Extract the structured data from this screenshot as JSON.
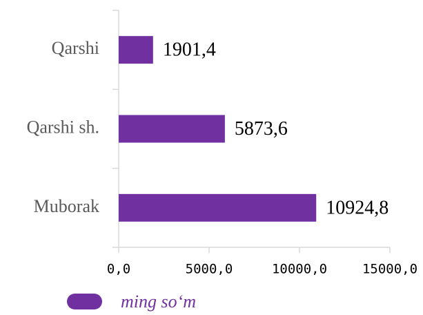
{
  "chart_data": {
    "type": "bar",
    "orientation": "horizontal",
    "categories": [
      "Qarshi",
      "Qarshi sh.",
      "Muborak"
    ],
    "series": [
      {
        "name": "ming so‘m",
        "color": "#7030a0",
        "values": [
          1901.4,
          5873.6,
          10924.8
        ],
        "value_labels": [
          "1901,4",
          "5873,6",
          "10924,8"
        ]
      }
    ],
    "xlim": [
      0,
      15000
    ],
    "xticks": [
      {
        "value": 0,
        "label": "0,0"
      },
      {
        "value": 5000,
        "label": "5000,0"
      },
      {
        "value": 10000,
        "label": "10000,0"
      },
      {
        "value": 15000,
        "label": "15000,0"
      }
    ],
    "legend": "bottom"
  }
}
